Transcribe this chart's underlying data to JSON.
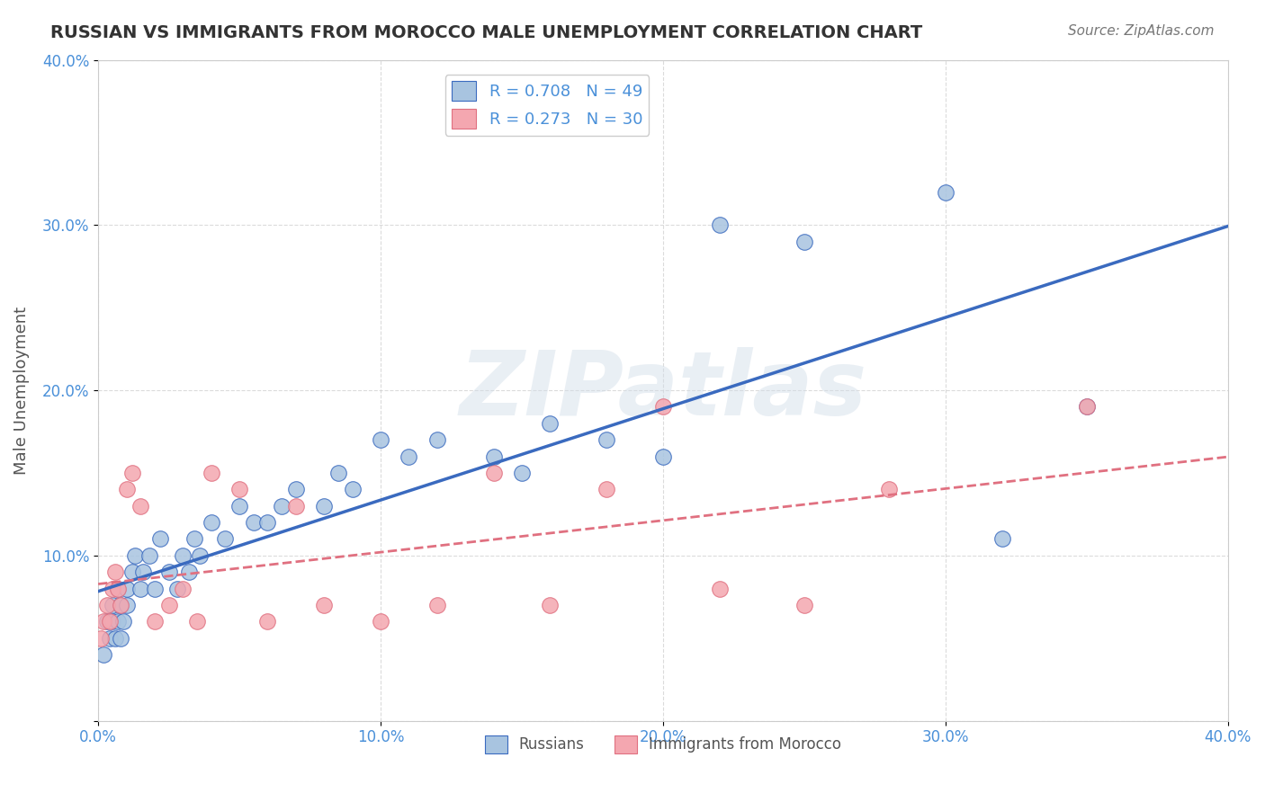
{
  "title": "RUSSIAN VS IMMIGRANTS FROM MOROCCO MALE UNEMPLOYMENT CORRELATION CHART",
  "source": "Source: ZipAtlas.com",
  "xlabel": "",
  "ylabel": "Male Unemployment",
  "xlim": [
    0,
    0.4
  ],
  "ylim": [
    0,
    0.4
  ],
  "xticks": [
    0.0,
    0.1,
    0.2,
    0.3,
    0.4
  ],
  "yticks": [
    0.0,
    0.1,
    0.2,
    0.3,
    0.4
  ],
  "xtick_labels": [
    "0.0%",
    "10.0%",
    "20.0%",
    "30.0%",
    "40.0%"
  ],
  "ytick_labels": [
    "",
    "10.0%",
    "20.0%",
    "30.0%",
    "40.0%"
  ],
  "russian_R": 0.708,
  "russian_N": 49,
  "morocco_R": 0.273,
  "morocco_N": 30,
  "russian_color": "#a8c4e0",
  "morocco_color": "#f4a7b0",
  "russian_line_color": "#3a6abf",
  "morocco_line_color": "#e07080",
  "watermark": "ZIPatlas",
  "background_color": "#ffffff",
  "grid_color": "#cccccc",
  "legend_label_russian": "Russians",
  "legend_label_morocco": "Immigrants from Morocco",
  "russian_x": [
    0.002,
    0.003,
    0.004,
    0.005,
    0.005,
    0.006,
    0.007,
    0.007,
    0.008,
    0.008,
    0.009,
    0.01,
    0.01,
    0.012,
    0.013,
    0.015,
    0.016,
    0.018,
    0.02,
    0.022,
    0.025,
    0.028,
    0.03,
    0.032,
    0.034,
    0.036,
    0.04,
    0.045,
    0.05,
    0.055,
    0.06,
    0.065,
    0.07,
    0.08,
    0.085,
    0.09,
    0.1,
    0.11,
    0.12,
    0.14,
    0.15,
    0.16,
    0.18,
    0.2,
    0.22,
    0.25,
    0.3,
    0.32,
    0.35
  ],
  "russian_y": [
    0.04,
    0.06,
    0.05,
    0.07,
    0.06,
    0.05,
    0.08,
    0.06,
    0.05,
    0.07,
    0.06,
    0.08,
    0.07,
    0.09,
    0.1,
    0.08,
    0.09,
    0.1,
    0.08,
    0.11,
    0.09,
    0.08,
    0.1,
    0.09,
    0.11,
    0.1,
    0.12,
    0.11,
    0.13,
    0.12,
    0.12,
    0.13,
    0.14,
    0.13,
    0.15,
    0.14,
    0.17,
    0.16,
    0.17,
    0.16,
    0.15,
    0.18,
    0.17,
    0.16,
    0.3,
    0.29,
    0.32,
    0.11,
    0.19
  ],
  "morocco_x": [
    0.001,
    0.002,
    0.003,
    0.004,
    0.005,
    0.006,
    0.007,
    0.008,
    0.01,
    0.012,
    0.015,
    0.02,
    0.025,
    0.03,
    0.035,
    0.04,
    0.05,
    0.06,
    0.07,
    0.08,
    0.1,
    0.12,
    0.14,
    0.16,
    0.18,
    0.2,
    0.22,
    0.25,
    0.28,
    0.35
  ],
  "morocco_y": [
    0.05,
    0.06,
    0.07,
    0.06,
    0.08,
    0.09,
    0.08,
    0.07,
    0.14,
    0.15,
    0.13,
    0.06,
    0.07,
    0.08,
    0.06,
    0.15,
    0.14,
    0.06,
    0.13,
    0.07,
    0.06,
    0.07,
    0.15,
    0.07,
    0.14,
    0.19,
    0.08,
    0.07,
    0.14,
    0.19
  ]
}
